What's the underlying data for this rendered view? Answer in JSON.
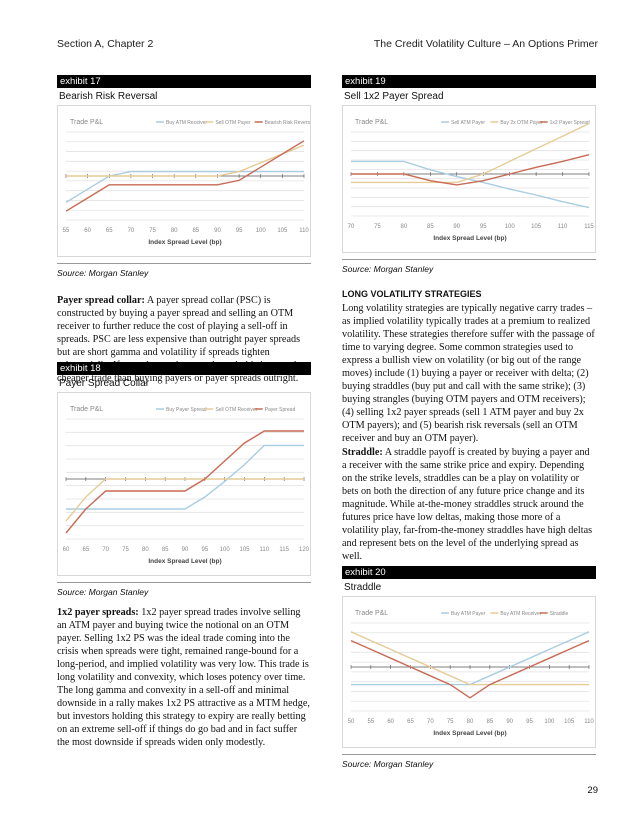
{
  "header": {
    "left": "Section A, Chapter 2",
    "right": "The Credit Volatility Culture – An Options Primer"
  },
  "page_number": "29",
  "exhibits": [
    {
      "tag": "exhibit 17",
      "title": "Bearish Risk Reversal",
      "source": "Source: Morgan Stanley"
    },
    {
      "tag": "exhibit 18",
      "title": "Payer Spread Collar",
      "source": "Source: Morgan Stanley"
    },
    {
      "tag": "exhibit 19",
      "title": "Sell 1x2 Payer Spread",
      "source": "Source: Morgan Stanley"
    },
    {
      "tag": "exhibit 20",
      "title": "Straddle",
      "source": "Source: Morgan Stanley"
    }
  ],
  "paragraphs": {
    "psc_lead": "Payer spread collar:",
    "psc_body": " A payer spread collar (PSC) is constructed by buying a payer spread and selling an OTM receiver to further reduce the cost of playing a sell-off in spreads. PSC are less expensive than outright payer spreads but are short gamma and volatility if spreads tighten substantially. If spreads remain range-bound, this is a much cheaper trade than buying payers or payer spreads outright.",
    "ps12_lead": "1x2 payer spreads:",
    "ps12_body": " 1x2 payer spread trades involve selling an ATM payer and buying twice the notional on an OTM payer. Selling 1x2 PS was the ideal trade coming into the crisis when spreads were tight, remained range-bound for a long-period, and implied volatility was very low. This trade is long volatility and convexity, which loses potency over time. The long gamma and convexity in a sell-off and minimal downside in a rally makes 1x2 PS attractive as a MTM hedge, but investors holding this strategy to expiry are really betting on an extreme sell-off if things do go bad and in fact suffer the most downside if spreads widen only modestly.",
    "lvs_heading": "LONG VOLATILITY STRATEGIES",
    "lvs_body": "Long volatility strategies are typically negative carry trades – as implied volatility typically trades at a premium to realized volatility. These strategies therefore suffer with the passage of time to varying degree. Some common strategies used to express a bullish view on volatility (or big out of the range moves) include (1) buying a payer or receiver with delta; (2) buying straddles (buy put and call with the same strike); (3) buying strangles (buying OTM payers and OTM receivers); (4) selling 1x2 payer spreads (sell 1 ATM payer and buy 2x OTM payers); and (5) bearish risk reversals (sell an OTM receiver and buy an OTM payer).",
    "straddle_lead": "Straddle:",
    "straddle_body": " A straddle payoff is created by buying a payer and a receiver with the same strike price and expiry. Depending on the strike levels, straddles can be a play on volatility or bets on both the direction of any future price change and its magnitude. While at-the-money straddles struck around the futures price have low deltas, making those more of a volatility play, far-from-the-money straddles have high deltas and represent bets on the level of the underlying spread as well."
  },
  "chart_data": [
    {
      "type": "line",
      "title": "Bearish Risk Reversal",
      "ylabel": "Trade P&L",
      "xlabel": "Index Spread Level (bp)",
      "x": [
        55,
        60,
        65,
        70,
        75,
        80,
        85,
        90,
        95,
        100,
        105,
        110
      ],
      "xlim": [
        55,
        110
      ],
      "ylim": [
        -5,
        5
      ],
      "grid": true,
      "legend": "top",
      "series": [
        {
          "name": "Buy ATM Receiver",
          "color": "#a9cde3",
          "values": [
            -3,
            -1.5,
            0,
            0.5,
            0.5,
            0.5,
            0.5,
            0.5,
            0.5,
            0.5,
            0.5,
            0.5
          ]
        },
        {
          "name": "Sell OTM Payer",
          "color": "#e6cc95",
          "values": [
            0,
            0,
            0,
            0,
            0,
            0,
            0,
            0,
            0.5,
            1.5,
            2.5,
            3.5
          ]
        },
        {
          "name": "Bearish Risk Reversal",
          "color": "#c86a55",
          "values": [
            -4,
            -2.5,
            -1,
            -1,
            -1,
            -1,
            -1,
            -1,
            -0.5,
            1,
            2.5,
            4
          ]
        }
      ]
    },
    {
      "type": "line",
      "title": "Payer Spread Collar",
      "ylabel": "Trade P&L",
      "xlabel": "Index Spread Level (bp)",
      "x": [
        60,
        65,
        70,
        75,
        80,
        85,
        90,
        95,
        100,
        105,
        110,
        115,
        120
      ],
      "xlim": [
        60,
        120
      ],
      "ylim": [
        -5,
        5
      ],
      "grid": true,
      "legend": "top",
      "series": [
        {
          "name": "Buy Payer Spread",
          "color": "#a9cde3",
          "values": [
            -2.5,
            -2.5,
            -2.5,
            -2.5,
            -2.5,
            -2.5,
            -2.5,
            -1.5,
            -0.2,
            1.2,
            2.8,
            2.8,
            2.8
          ]
        },
        {
          "name": "Sell OTM Receiver",
          "color": "#e6cc95",
          "values": [
            -3.5,
            -1.5,
            0,
            0,
            0,
            0,
            0,
            0,
            0,
            0,
            0,
            0,
            0
          ]
        },
        {
          "name": "Payer Spread",
          "color": "#c86a55",
          "values": [
            -4.5,
            -2.5,
            -1,
            -1,
            -1,
            -1,
            -1,
            0,
            1.5,
            3,
            4,
            4,
            4
          ]
        }
      ]
    },
    {
      "type": "line",
      "title": "Sell 1x2 Payer Spread",
      "ylabel": "Trade P&L",
      "xlabel": "Index Spread Level (bp)",
      "x": [
        70,
        75,
        80,
        85,
        90,
        95,
        100,
        105,
        110,
        115
      ],
      "xlim": [
        70,
        115
      ],
      "ylim": [
        -5,
        5
      ],
      "grid": true,
      "legend": "top",
      "series": [
        {
          "name": "Sell ATM Payer",
          "color": "#a9cde3",
          "values": [
            1.5,
            1.5,
            1.5,
            0.5,
            -0.3,
            -1,
            -1.8,
            -2.5,
            -3.3,
            -4
          ]
        },
        {
          "name": "Buy 2x OTM Payer",
          "color": "#e6cc95",
          "values": [
            -1,
            -1,
            -1,
            -1,
            -1,
            0,
            1.5,
            3,
            4.5,
            6
          ]
        },
        {
          "name": "1x2 Payer Spread",
          "color": "#c86a55",
          "values": [
            0,
            0,
            0,
            -0.8,
            -1.3,
            -0.8,
            0,
            0.8,
            1.5,
            2.3
          ]
        }
      ]
    },
    {
      "type": "line",
      "title": "Straddle",
      "ylabel": "Trade P&L",
      "xlabel": "Index Spread Level (bp)",
      "x": [
        50,
        55,
        60,
        65,
        70,
        75,
        80,
        85,
        90,
        95,
        100,
        105,
        110
      ],
      "xlim": [
        50,
        110
      ],
      "ylim": [
        -5,
        5
      ],
      "grid": true,
      "legend": "top",
      "series": [
        {
          "name": "Buy ATM Payer",
          "color": "#a9cde3",
          "values": [
            -2,
            -2,
            -2,
            -2,
            -2,
            -2,
            -2,
            -1,
            0,
            1,
            2,
            3,
            4
          ]
        },
        {
          "name": "Buy ATM Receiver",
          "color": "#e6cc95",
          "values": [
            4,
            3,
            2,
            1,
            0,
            -1,
            -2,
            -2,
            -2,
            -2,
            -2,
            -2,
            -2
          ]
        },
        {
          "name": "Straddle",
          "color": "#c86a55",
          "values": [
            3,
            2,
            1,
            0,
            -1,
            -2,
            -3.5,
            -2,
            -1,
            0,
            1,
            2,
            3
          ]
        }
      ]
    }
  ]
}
